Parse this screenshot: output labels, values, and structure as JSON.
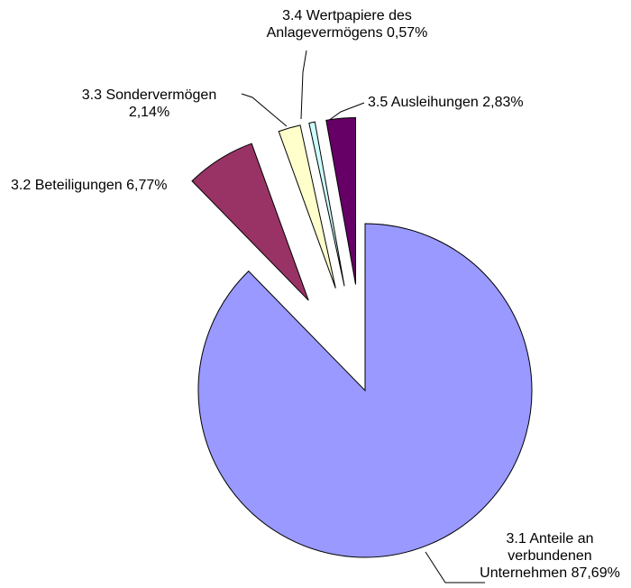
{
  "chart_data": {
    "type": "pie",
    "categories": [
      "3.1 Anteile an verbundenen Unternehmen",
      "3.2 Beteiligungen",
      "3.3 Sondervermögen",
      "3.4 Wertpapiere des Anlagevermögens",
      "3.5 Ausleihungen"
    ],
    "values": [
      87.69,
      6.77,
      2.14,
      0.57,
      2.83
    ],
    "value_labels": [
      "87,69%",
      "6,77%",
      "2,14%",
      "0,57%",
      "2,83%"
    ],
    "colors": [
      "#9999ff",
      "#993366",
      "#ffffcc",
      "#ccffff",
      "#660066"
    ]
  }
}
